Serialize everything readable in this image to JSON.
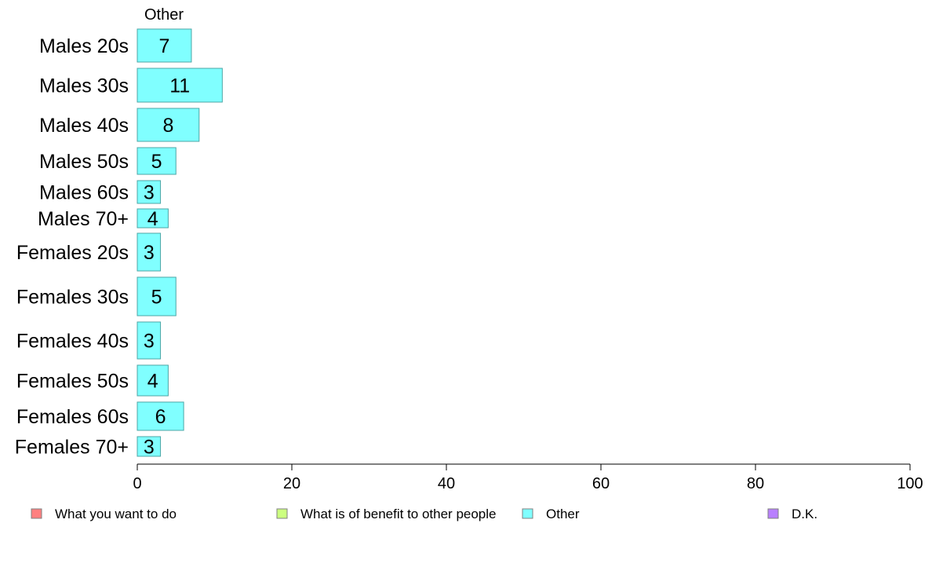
{
  "chart_data": {
    "type": "bar",
    "orientation": "horizontal",
    "title": "Other",
    "categories": [
      "Males 20s",
      "Males 30s",
      "Males 40s",
      "Males 50s",
      "Males 60s",
      "Males 70+",
      "Females 20s",
      "Females 30s",
      "Females 40s",
      "Females 50s",
      "Females 60s",
      "Females 70+"
    ],
    "values": [
      7,
      11,
      8,
      5,
      3,
      4,
      3,
      5,
      3,
      4,
      6,
      3
    ],
    "bar_color": "#80FFFF",
    "bar_border_color": "#4DA6A6",
    "xlim": [
      0,
      100
    ],
    "xticks": [
      0,
      20,
      40,
      60,
      80,
      100
    ],
    "xlabel": "",
    "ylabel": "",
    "grid": false,
    "legend_position": "bottom",
    "legend": [
      {
        "label": "What you want to do",
        "color": "#FF8080"
      },
      {
        "label": "What is of benefit to other people",
        "color": "#CCFF80"
      },
      {
        "label": "Other",
        "color": "#80FFFF"
      },
      {
        "label": "D.K.",
        "color": "#B980FF"
      }
    ]
  }
}
